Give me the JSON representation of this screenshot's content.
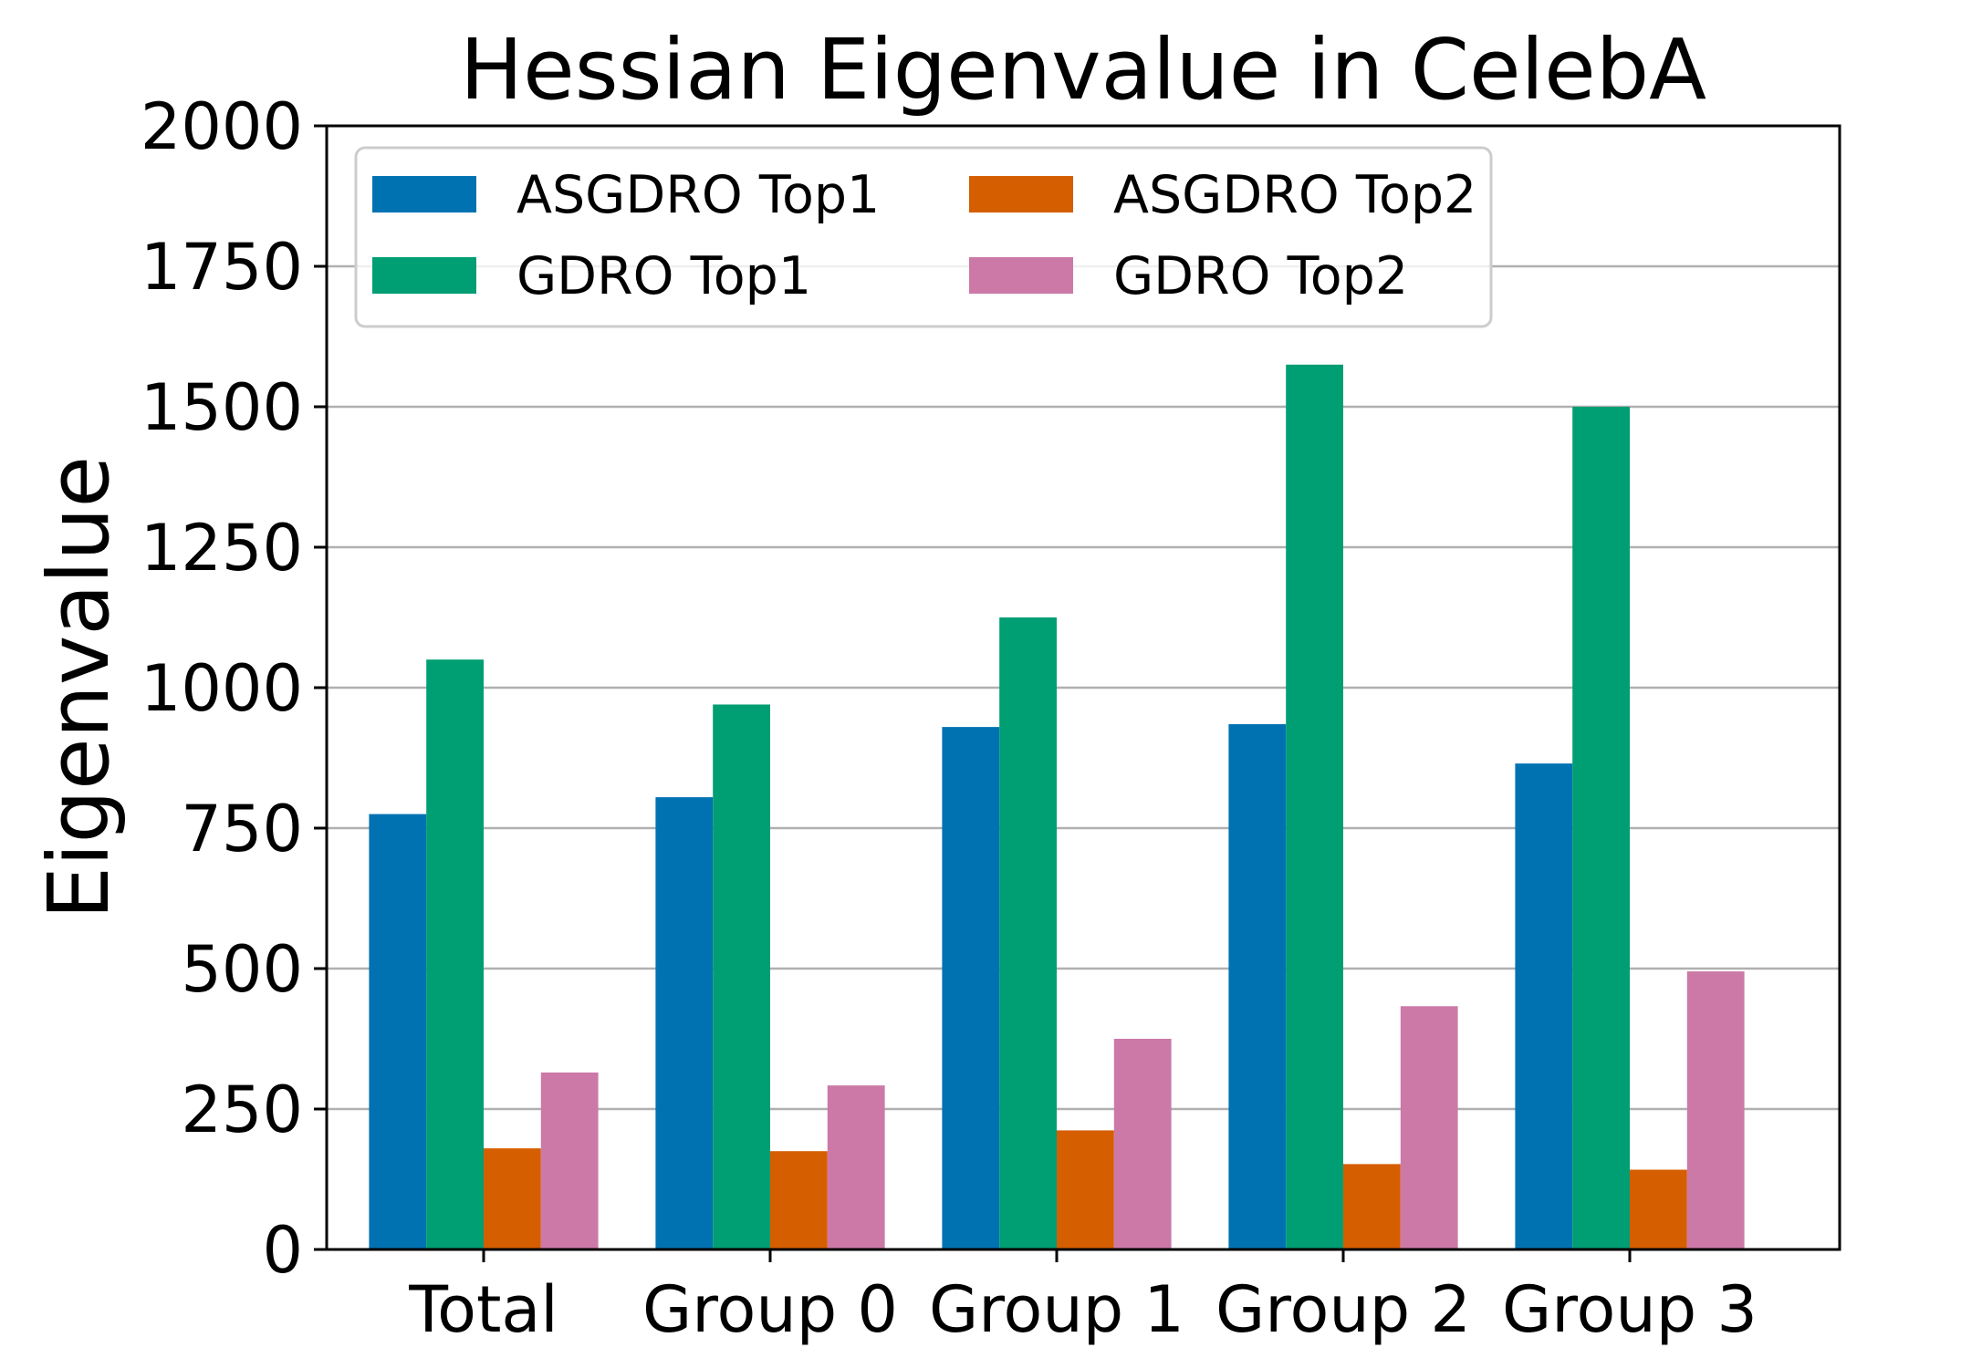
{
  "chart_data": {
    "type": "bar",
    "title": "Hessian Eigenvalue in CelebA",
    "xlabel": "",
    "ylabel": "Eigenvalue",
    "categories": [
      "Total",
      "Group 0",
      "Group 1",
      "Group 2",
      "Group 3"
    ],
    "ylim": [
      0,
      2000
    ],
    "yticks": [
      0,
      250,
      500,
      750,
      1000,
      1250,
      1500,
      1750,
      2000
    ],
    "grid": "y",
    "legend_position": "top-left",
    "legend_columns": 2,
    "series": [
      {
        "name": "ASGDRO Top1",
        "color": "#0072B2",
        "values": [
          775,
          805,
          930,
          935,
          865
        ]
      },
      {
        "name": "GDRO Top1",
        "color": "#009E73",
        "values": [
          1050,
          970,
          1125,
          1575,
          1500
        ]
      },
      {
        "name": "ASGDRO Top2",
        "color": "#D55E00",
        "values": [
          180,
          175,
          212,
          152,
          142
        ]
      },
      {
        "name": "GDRO Top2",
        "color": "#CC79A7",
        "values": [
          315,
          292,
          375,
          433,
          495
        ]
      }
    ]
  }
}
